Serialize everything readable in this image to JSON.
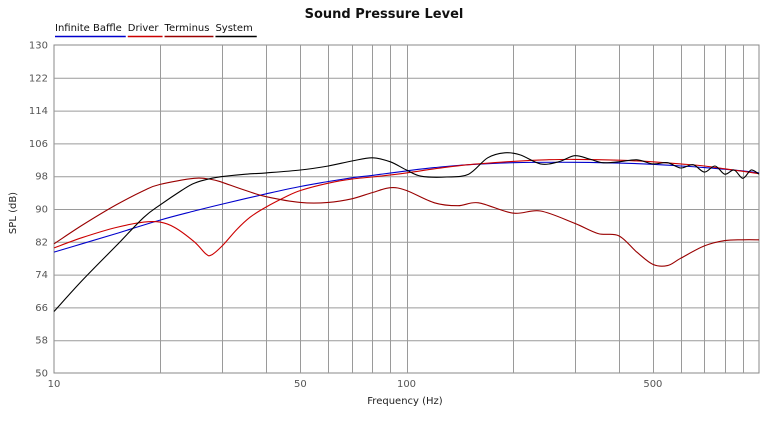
{
  "chart_data": {
    "type": "line",
    "title": "Sound Pressure Level",
    "xlabel": "Frequency (Hz)",
    "ylabel": "SPL (dB)",
    "xscale": "log",
    "xlim": [
      10,
      1000
    ],
    "ylim": [
      50,
      130
    ],
    "yticks": [
      50,
      58,
      66,
      74,
      82,
      90,
      98,
      106,
      114,
      122,
      130
    ],
    "xticks_labeled": [
      10,
      50,
      100,
      500
    ],
    "xgrid": [
      20,
      30,
      40,
      50,
      60,
      70,
      80,
      90,
      100,
      200,
      300,
      400,
      500,
      600,
      700,
      800,
      900
    ],
    "grid": true,
    "legend_position": "top-left",
    "series": [
      {
        "name": "Infinite Baffle",
        "color": "#0000cc",
        "x": [
          10,
          12,
          15,
          20,
          25,
          30,
          40,
          50,
          60,
          70,
          80,
          100,
          120,
          150,
          200,
          300,
          400,
          500,
          600,
          700,
          800,
          900,
          1000
        ],
        "y": [
          79.5,
          81.5,
          84,
          87.3,
          89.5,
          91.2,
          93.7,
          95.5,
          96.7,
          97.6,
          98.2,
          99.3,
          100.1,
          100.8,
          101.3,
          101.4,
          101.2,
          100.9,
          100.5,
          100.1,
          99.7,
          99.3,
          98.8
        ]
      },
      {
        "name": "Driver",
        "color": "#cc0000",
        "x": [
          10,
          12,
          15,
          18,
          20,
          22,
          25,
          27,
          28,
          30,
          33,
          36,
          40,
          45,
          50,
          60,
          70,
          80,
          100,
          120,
          150,
          200,
          250,
          300,
          400,
          500,
          600,
          700,
          800,
          900,
          1000
        ],
        "y": [
          80.5,
          83,
          85.5,
          86.8,
          86.8,
          85.5,
          82,
          79,
          78.8,
          81,
          85,
          88,
          90.5,
          92.8,
          94.5,
          96.3,
          97.3,
          97.8,
          98.8,
          99.8,
          100.8,
          101.6,
          102,
          102.1,
          101.9,
          101.5,
          101,
          100.5,
          99.8,
          99.2,
          98.6
        ]
      },
      {
        "name": "Terminus",
        "color": "#990000",
        "x": [
          10,
          12,
          15,
          18,
          20,
          25,
          28,
          30,
          35,
          40,
          50,
          60,
          70,
          80,
          90,
          100,
          120,
          140,
          160,
          200,
          240,
          300,
          350,
          400,
          450,
          500,
          550,
          600,
          700,
          800,
          900,
          1000
        ],
        "y": [
          81.5,
          86,
          91,
          94.5,
          96,
          97.5,
          97.2,
          96.5,
          94.5,
          93,
          91.6,
          91.6,
          92.5,
          94,
          95.2,
          94.5,
          91.5,
          90.8,
          91.5,
          89,
          89.5,
          86.5,
          84,
          83.5,
          79.5,
          76.5,
          76.2,
          78,
          81,
          82.3,
          82.5,
          82.5
        ]
      },
      {
        "name": "System",
        "color": "#000000",
        "x": [
          10,
          12,
          15,
          18,
          20,
          23,
          25,
          28,
          30,
          35,
          40,
          50,
          60,
          70,
          80,
          90,
          100,
          110,
          130,
          150,
          170,
          190,
          210,
          240,
          270,
          300,
          330,
          360,
          400,
          450,
          500,
          550,
          600,
          650,
          700,
          750,
          800,
          850,
          900,
          950,
          1000
        ],
        "y": [
          65,
          72.5,
          81,
          88,
          91,
          94.5,
          96.3,
          97.5,
          97.9,
          98.5,
          98.8,
          99.5,
          100.5,
          101.7,
          102.5,
          101.5,
          99.5,
          98,
          97.8,
          98.5,
          102.5,
          103.7,
          103.2,
          101,
          101.5,
          103,
          102.2,
          101.3,
          101.5,
          102,
          101,
          101.3,
          100,
          100.8,
          99,
          100.5,
          98.5,
          99.5,
          97.5,
          99.5,
          98.5
        ]
      }
    ]
  }
}
